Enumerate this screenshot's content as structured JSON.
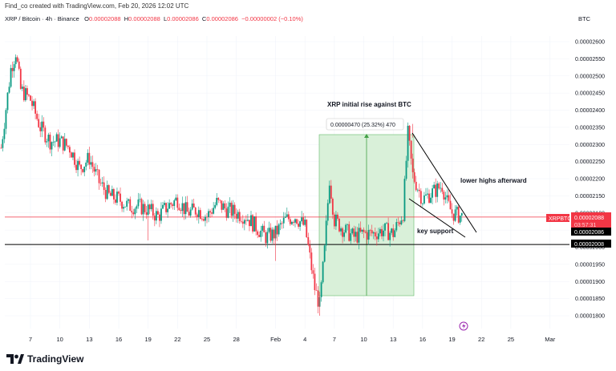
{
  "header": {
    "credit": "Find_co created with TradingView.com, Feb 20, 2026 12:02 UTC",
    "symbol": "XRP / Bitcoin · 4h · Binance",
    "o_label": "O",
    "o_value": "0.00002088",
    "h_label": "H",
    "h_value": "0.00002088",
    "l_label": "L",
    "l_value": "0.00002086",
    "c_label": "C",
    "c_value": "0.00002086",
    "change": "−0.00000002 (−0.10%)",
    "currency": "BTC"
  },
  "brand": {
    "name": "TradingView",
    "logo_icon": "tradingview-logo-icon"
  },
  "annotations": {
    "rise_title": "XRP initial rise against BTC",
    "measure": "0.00000470 (25.32%) 470",
    "lower_highs": "lower highs afterward",
    "key_support": "key support"
  },
  "tags": {
    "symbol": "XRPBTC",
    "price": "0.00002088",
    "countdown": "03:57:31",
    "level_upper": "0.00002086",
    "level_lower": "0.00002008"
  },
  "colors": {
    "up": "#089981",
    "down": "#f23645",
    "range_fill": "#d9f0d9",
    "range_line": "#66bb6a",
    "price_line": "#f23645",
    "support_line": "#000000"
  },
  "chart_data": {
    "type": "candlestick",
    "symbol": "XRPBTC",
    "timeframe": "4h",
    "y_axis_ticks": [
      "0.00002600",
      "0.00002550",
      "0.00002500",
      "0.00002450",
      "0.00002400",
      "0.00002350",
      "0.00002300",
      "0.00002250",
      "0.00002200",
      "0.00002150",
      "0.00002100",
      "0.00002050",
      "0.00002000",
      "0.00001950",
      "0.00001900",
      "0.00001850",
      "0.00001800"
    ],
    "x_axis_ticks": [
      "7",
      "10",
      "13",
      "16",
      "19",
      "22",
      "25",
      "28",
      "Feb",
      "4",
      "7",
      "10",
      "13",
      "16",
      "19",
      "22",
      "25",
      "Mar"
    ],
    "ylim": [
      1.78e-05,
      2.62e-05
    ],
    "horizontal_levels": [
      2.086e-05,
      2.008e-05
    ],
    "current_price": 2.088e-05,
    "measure_range": {
      "from": 1.86e-05,
      "to": 2.33e-05,
      "change": "0.00000470",
      "percent": "25.32%",
      "bars": 470
    },
    "close_path": [
      [
        "Jan 4",
        2.29e-05
      ],
      [
        "Jan 5",
        2.52e-05
      ],
      [
        "Jan 5",
        2.57e-05
      ],
      [
        "Jan 6",
        2.46e-05
      ],
      [
        "Jan 7",
        2.43e-05
      ],
      [
        "Jan 8",
        2.35e-05
      ],
      [
        "Jan 9",
        2.31e-05
      ],
      [
        "Jan 10",
        2.31e-05
      ],
      [
        "Jan 11",
        2.29e-05
      ],
      [
        "Jan 12",
        2.23e-05
      ],
      [
        "Jan 13",
        2.26e-05
      ],
      [
        "Jan 14",
        2.19e-05
      ],
      [
        "Jan 15",
        2.15e-05
      ],
      [
        "Jan 16",
        2.14e-05
      ],
      [
        "Jan 17",
        2.12e-05
      ],
      [
        "Jan 18",
        2.12e-05
      ],
      [
        "Jan 19",
        2.11e-05
      ],
      [
        "Jan 20",
        2.09e-05
      ],
      [
        "Jan 21",
        2.12e-05
      ],
      [
        "Jan 22",
        2.14e-05
      ],
      [
        "Jan 23",
        2.1e-05
      ],
      [
        "Jan 24",
        2.11e-05
      ],
      [
        "Jan 25",
        2.09e-05
      ],
      [
        "Jan 26",
        2.13e-05
      ],
      [
        "Jan 27",
        2.11e-05
      ],
      [
        "Jan 28",
        2.1e-05
      ],
      [
        "Jan 29",
        2.09e-05
      ],
      [
        "Jan 30",
        2.06e-05
      ],
      [
        "Jan 31",
        2.03e-05
      ],
      [
        "Feb 1",
        2.04e-05
      ],
      [
        "Feb 2",
        2.08e-05
      ],
      [
        "Feb 3",
        2.09e-05
      ],
      [
        "Feb 4",
        2.06e-05
      ],
      [
        "Feb 5",
        1.88e-05
      ],
      [
        "Feb 5",
        1.83e-05
      ],
      [
        "Feb 6",
        1.99e-05
      ],
      [
        "Feb 6",
        2.2e-05
      ],
      [
        "Feb 7",
        2.08e-05
      ],
      [
        "Feb 8",
        2.05e-05
      ],
      [
        "Feb 9",
        2.03e-05
      ],
      [
        "Feb 10",
        2.04e-05
      ],
      [
        "Feb 11",
        2.04e-05
      ],
      [
        "Feb 12",
        2.05e-05
      ],
      [
        "Feb 13",
        2.04e-05
      ],
      [
        "Feb 14",
        2.1e-05
      ],
      [
        "Feb 14",
        2.33e-05
      ],
      [
        "Feb 15",
        2.21e-05
      ],
      [
        "Feb 16",
        2.14e-05
      ],
      [
        "Feb 17",
        2.16e-05
      ],
      [
        "Feb 18",
        2.18e-05
      ],
      [
        "Feb 18",
        2.13e-05
      ],
      [
        "Feb 19",
        2.1e-05
      ],
      [
        "Feb 20",
        2.09e-05
      ]
    ]
  }
}
